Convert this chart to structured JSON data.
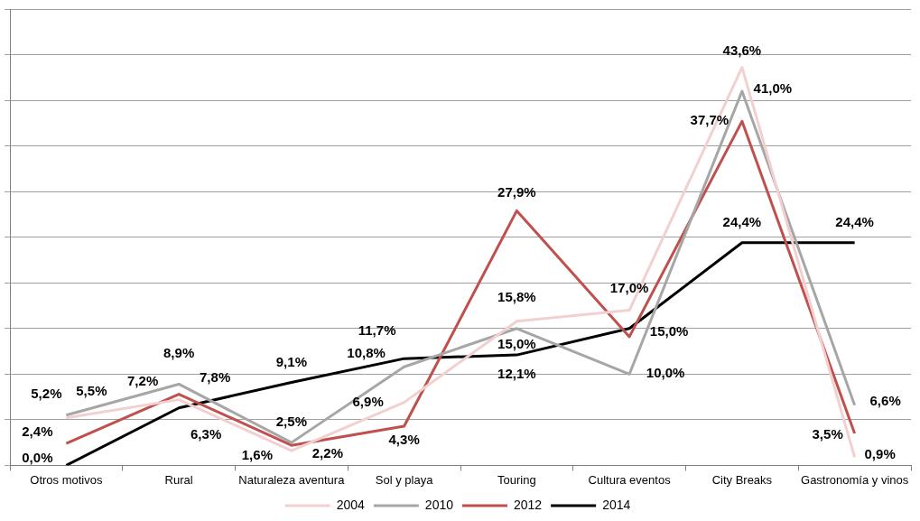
{
  "chart_data": {
    "type": "line",
    "categories": [
      "Otros motivos",
      "Rural",
      "Naturaleza aventura",
      "Sol y playa",
      "Touring",
      "Cultura eventos",
      "City Breaks",
      "Gastronomía y vinos"
    ],
    "series": [
      {
        "name": "2004",
        "color": "#f2d0d0",
        "values": [
          5.2,
          7.2,
          1.6,
          6.9,
          15.8,
          17.0,
          43.6,
          0.9
        ],
        "value_labels": [
          "5,2%",
          "7,2%",
          "1,6%",
          "6,9%",
          "15,8%",
          "17,0%",
          "43,6%",
          "0,9%"
        ]
      },
      {
        "name": "2010",
        "color": "#a6a6a6",
        "values": [
          5.5,
          8.9,
          2.5,
          10.8,
          15.0,
          10.0,
          41.0,
          6.6
        ],
        "value_labels": [
          "5,5%",
          "8,9%",
          "2,5%",
          "10,8%",
          "15,0%",
          "10,0%",
          "41,0%",
          "6,6%"
        ]
      },
      {
        "name": "2012",
        "color": "#c0504d",
        "values": [
          2.4,
          7.8,
          2.2,
          4.3,
          27.9,
          14.1,
          37.7,
          3.5
        ],
        "value_labels": [
          "2,4%",
          "7,8%",
          "2,2%",
          "4,3%",
          "27,9%",
          null,
          "37,7%",
          "3,5%"
        ]
      },
      {
        "name": "2014",
        "color": "#000000",
        "values": [
          0.0,
          6.3,
          9.1,
          11.7,
          12.1,
          15.0,
          24.4,
          24.4
        ],
        "value_labels": [
          "0,0%",
          "6,3%",
          "9,1%",
          "11,7%",
          "12,1%",
          "15,0%",
          "24,4%",
          "24,4%"
        ]
      }
    ],
    "ylim": [
      0,
      50
    ],
    "yticks": [
      {
        "value": 0,
        "label": null
      },
      {
        "value": 5,
        "label": null
      },
      {
        "value": 10,
        "label": null
      },
      {
        "value": 15,
        "label": null
      },
      {
        "value": 20,
        "label": null
      },
      {
        "value": 25,
        "label": null
      },
      {
        "value": 30,
        "label": null
      },
      {
        "value": 35,
        "label": null
      },
      {
        "value": 40,
        "label": null
      },
      {
        "value": 45,
        "label": null
      },
      {
        "value": 50,
        "label": null
      }
    ],
    "tick_labels": "x",
    "grid": "y",
    "legend": "bottom",
    "marker": "none",
    "line_style": "solid"
  }
}
